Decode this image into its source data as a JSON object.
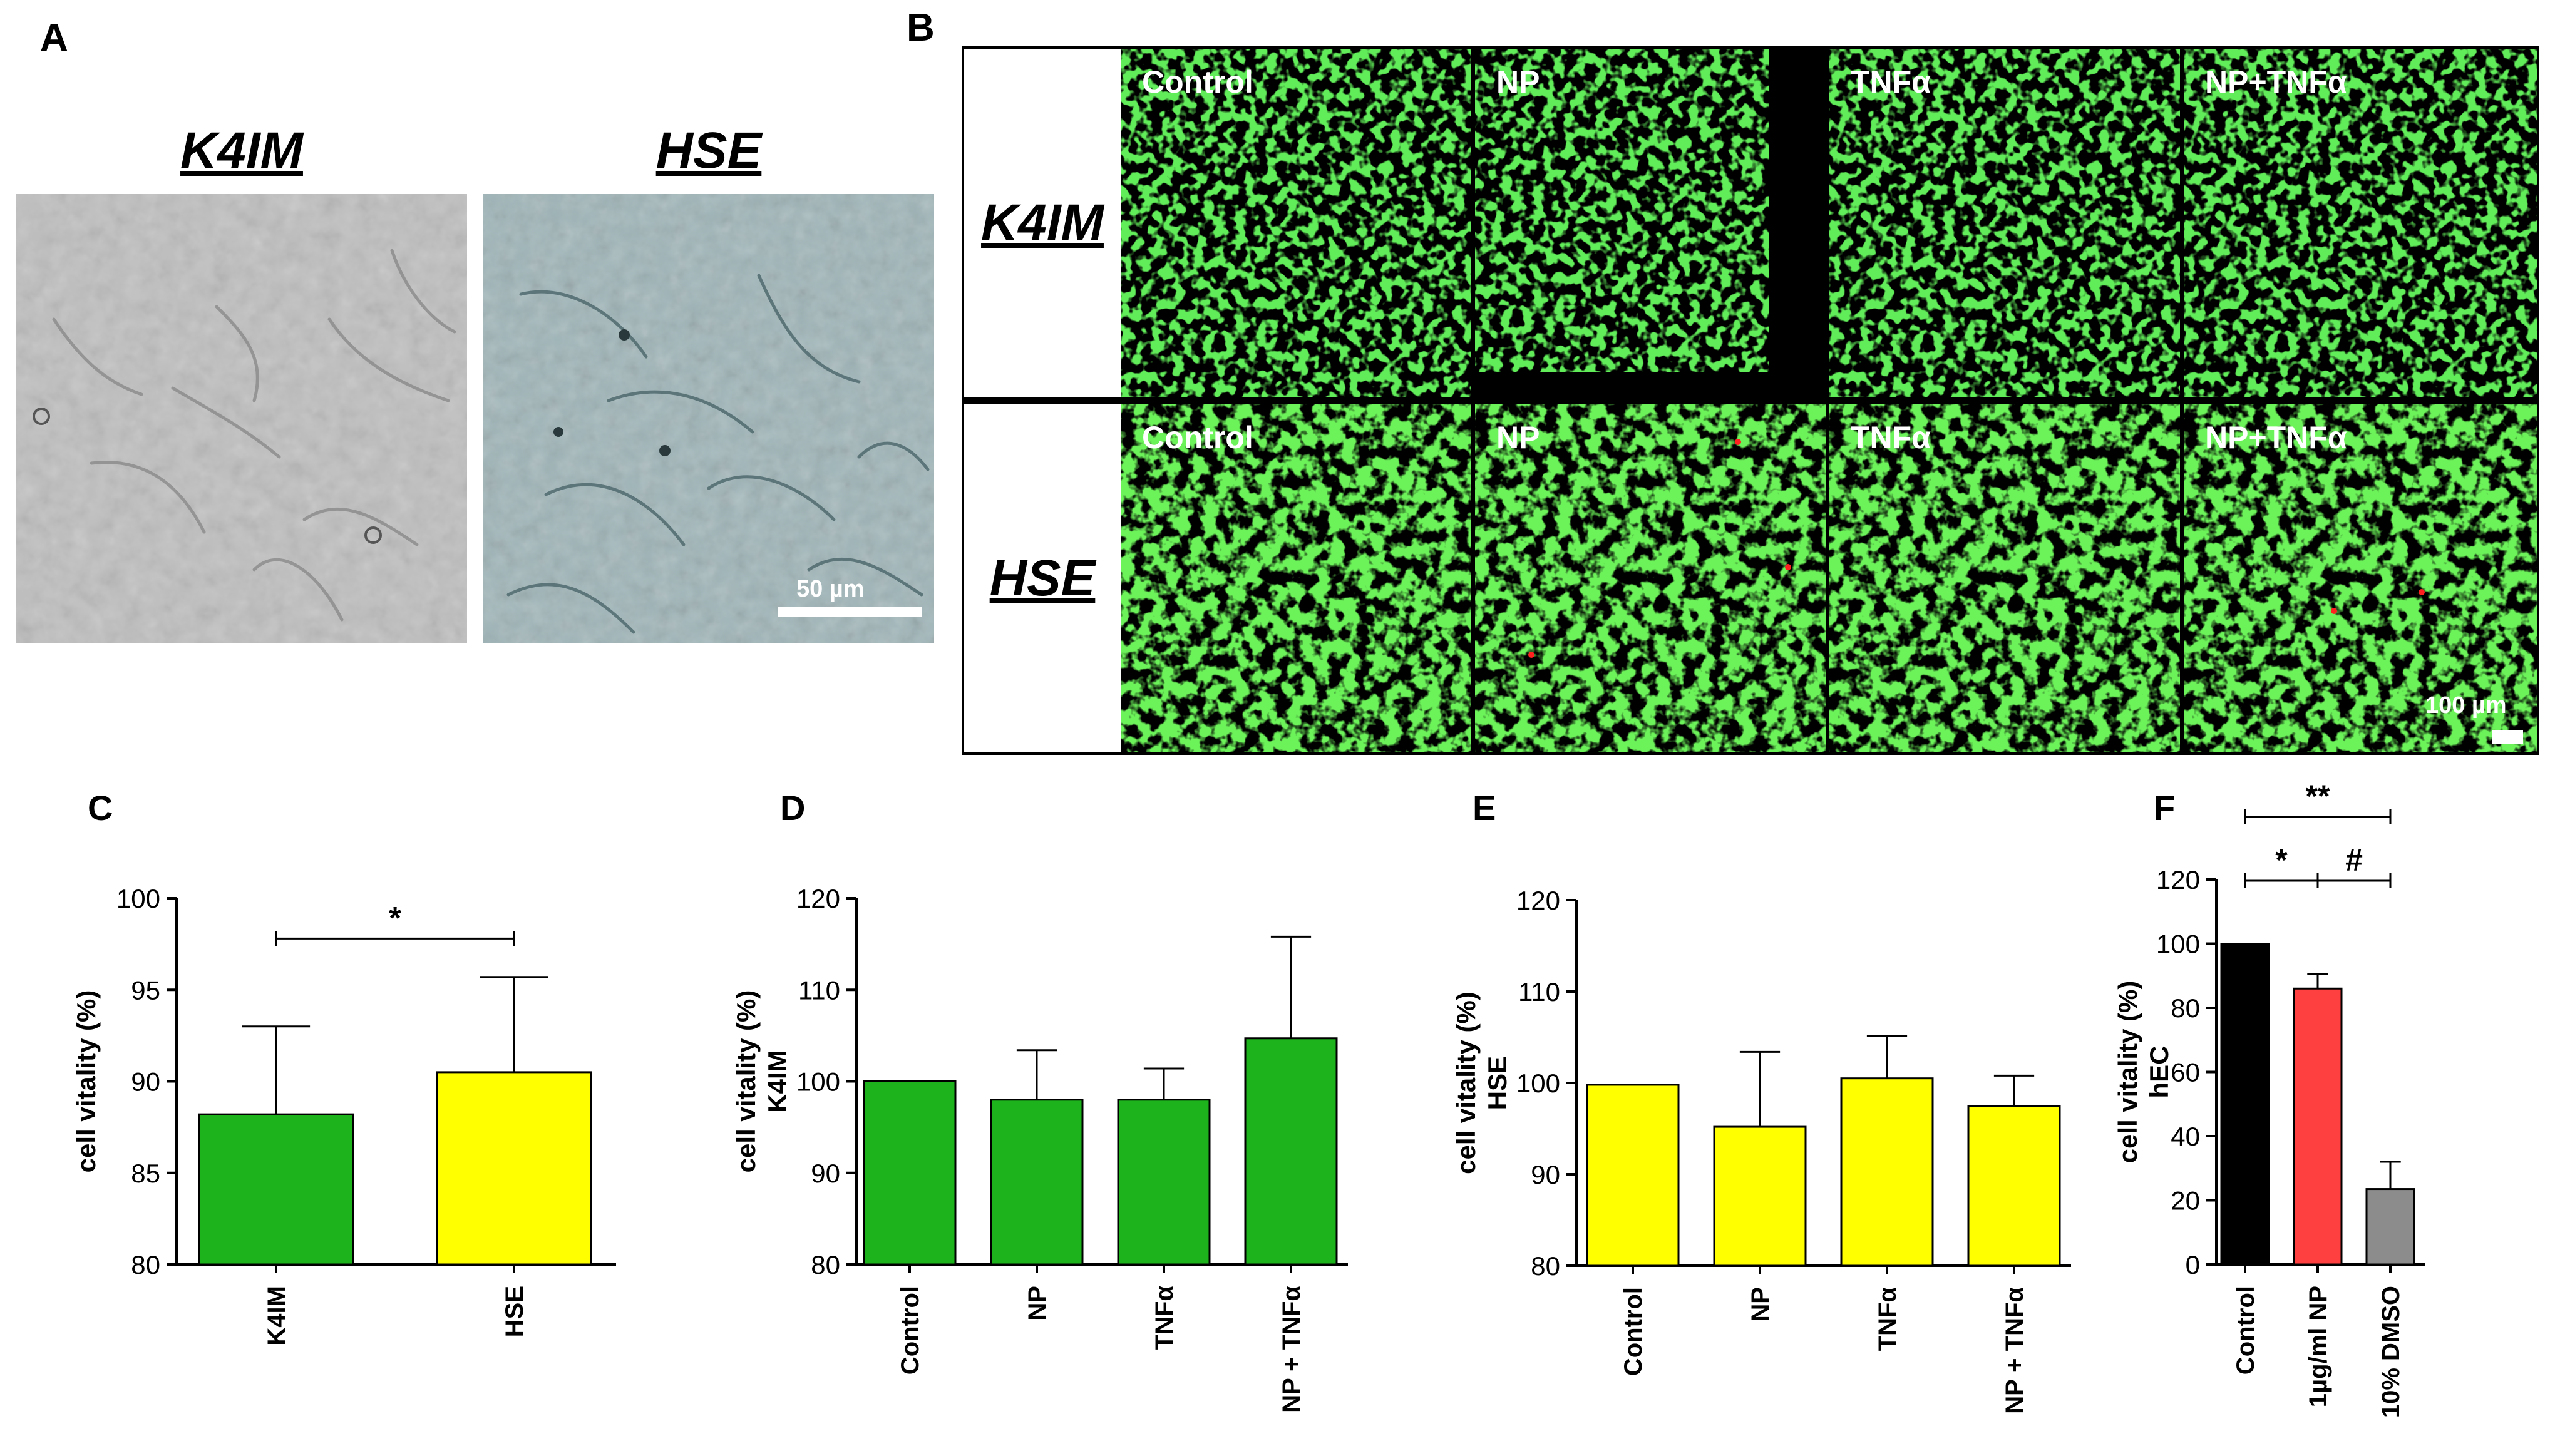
{
  "panel_a": {
    "letter": "A",
    "images": [
      {
        "title": "K4IM"
      },
      {
        "title": "HSE"
      }
    ],
    "scale_bar": "50 µm"
  },
  "panel_b": {
    "letter": "B",
    "rows": [
      {
        "label": "K4IM",
        "columns": [
          "Control",
          "NP",
          "TNFα",
          "NP+TNFα"
        ]
      },
      {
        "label": "HSE",
        "columns": [
          "Control",
          "NP",
          "TNFα",
          "NP+TNFα"
        ]
      }
    ],
    "scale_bar": "100 µm"
  },
  "chart_data": [
    {
      "panel": "C",
      "type": "bar",
      "categories": [
        "K4IM",
        "HSE"
      ],
      "values": [
        88.2,
        90.5
      ],
      "errors": [
        4.8,
        5.2
      ],
      "colors": [
        "#1db31d",
        "#ffff00"
      ],
      "ylabel": "cell vitality (%)",
      "ylim": [
        80,
        100
      ],
      "yticks": [
        80,
        85,
        90,
        95,
        100
      ],
      "significance": [
        {
          "from": 0,
          "to": 1,
          "label": "*"
        }
      ]
    },
    {
      "panel": "D",
      "type": "bar",
      "categories": [
        "Control",
        "NP",
        "TNFα",
        "NP + TNFα"
      ],
      "values": [
        100,
        98,
        98,
        104.7
      ],
      "errors": [
        0,
        5.4,
        3.4,
        11.1
      ],
      "colors": [
        "#1db31d",
        "#1db31d",
        "#1db31d",
        "#1db31d"
      ],
      "ylabel": "cell vitality (%)",
      "ylabel2": "K4IM",
      "ylim": [
        80,
        120
      ],
      "yticks": [
        80,
        90,
        100,
        110,
        120
      ],
      "significance": []
    },
    {
      "panel": "E",
      "type": "bar",
      "categories": [
        "Control",
        "NP",
        "TNFα",
        "NP + TNFα"
      ],
      "values": [
        99.8,
        95.2,
        100.5,
        97.5
      ],
      "errors": [
        0,
        8.2,
        4.6,
        3.3
      ],
      "colors": [
        "#ffff00",
        "#ffff00",
        "#ffff00",
        "#ffff00"
      ],
      "ylabel": "cell vitality (%)",
      "ylabel2": "HSE",
      "ylim": [
        80,
        120
      ],
      "yticks": [
        80,
        90,
        100,
        110,
        120
      ],
      "significance": []
    },
    {
      "panel": "F",
      "type": "bar",
      "categories": [
        "Control",
        "1µg/ml NP",
        "10% DMSO"
      ],
      "values": [
        100,
        86,
        23.5
      ],
      "errors": [
        0,
        4.5,
        8.5
      ],
      "colors": [
        "#000000",
        "#ff4040",
        "#8c8c8c"
      ],
      "ylabel": "cell vitality (%)",
      "ylabel2": "hEC",
      "ylim": [
        0,
        120
      ],
      "yticks": [
        0,
        20,
        40,
        60,
        80,
        100,
        120
      ],
      "significance": [
        {
          "from": 0,
          "to": 2,
          "label": "**",
          "level": 2
        },
        {
          "from": 0,
          "to": 1,
          "label": "*",
          "level": 1
        },
        {
          "from": 1,
          "to": 2,
          "label": "#",
          "level": 1
        }
      ]
    }
  ]
}
